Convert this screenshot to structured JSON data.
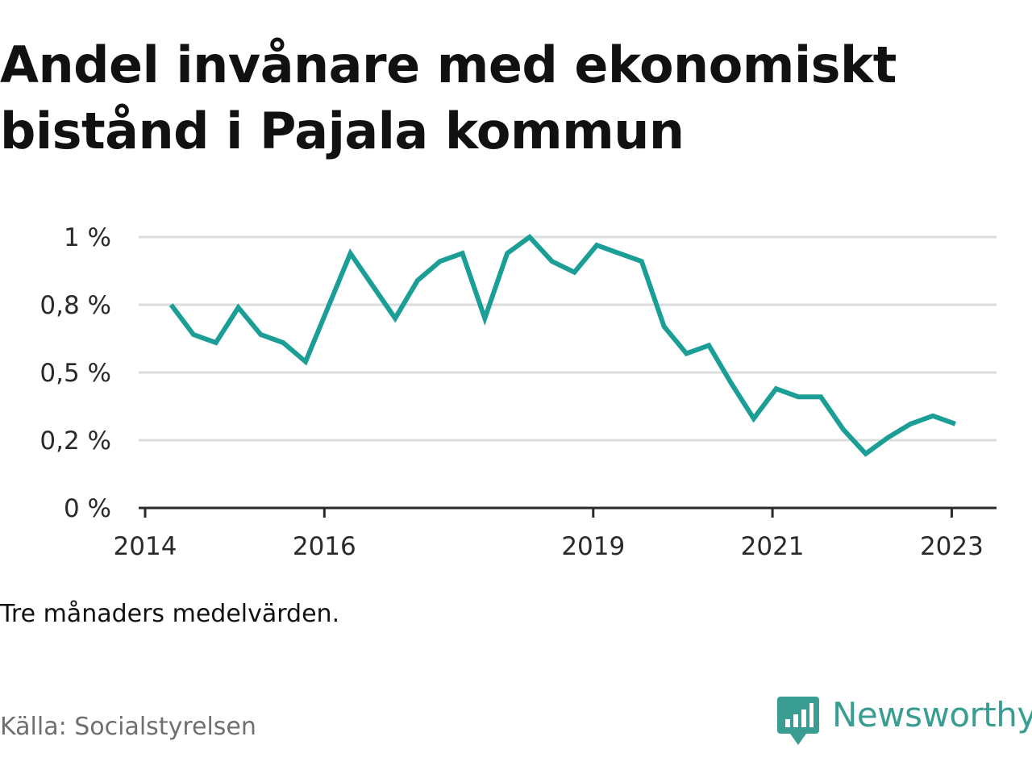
{
  "title": "Andel invånare med ekonomiskt bistånd i Pajala kommun",
  "note": "Tre månaders medelvärden.",
  "source": "Källa: Socialstyrelsen",
  "logo": {
    "text": "Newsworthy",
    "icon": "bar-chart-speech-bubble-icon",
    "color": "#3a9d91"
  },
  "chart_data": {
    "type": "line",
    "title": "Andel invånare med ekonomiskt bistånd i Pajala kommun",
    "xlabel": "",
    "ylabel": "",
    "xlim": [
      2014.0,
      2023.5
    ],
    "ylim": [
      0,
      1.0
    ],
    "x_ticks": [
      {
        "value": 2014,
        "label": "2014"
      },
      {
        "value": 2016,
        "label": "2016"
      },
      {
        "value": 2019,
        "label": "2019"
      },
      {
        "value": 2021,
        "label": "2021"
      },
      {
        "value": 2023,
        "label": "2023"
      }
    ],
    "y_ticks": [
      {
        "value": 0,
        "label": "0 %"
      },
      {
        "value": 0.25,
        "label": "0,2 %"
      },
      {
        "value": 0.5,
        "label": "0,5 %"
      },
      {
        "value": 0.75,
        "label": "0,8 %"
      },
      {
        "value": 1.0,
        "label": "1 %"
      }
    ],
    "grid": true,
    "line_color": "#1a9e96",
    "series": [
      {
        "x": [
          2014.29,
          2014.54,
          2014.79,
          2015.04,
          2015.29,
          2015.54,
          2015.79,
          2016.04,
          2016.29,
          2016.54,
          2016.79,
          2017.04,
          2017.29,
          2017.54,
          2017.79,
          2018.04,
          2018.29,
          2018.54,
          2018.79,
          2019.04,
          2019.29,
          2019.54,
          2019.79,
          2020.04,
          2020.29,
          2020.54,
          2020.79,
          2021.04,
          2021.29,
          2021.54,
          2021.79,
          2022.04,
          2022.29,
          2022.54,
          2022.79,
          2023.04
        ],
        "values": [
          0.75,
          0.64,
          0.61,
          0.74,
          0.64,
          0.61,
          0.54,
          0.74,
          0.94,
          0.82,
          0.7,
          0.84,
          0.91,
          0.94,
          0.7,
          0.94,
          1.0,
          0.91,
          0.87,
          0.97,
          0.94,
          0.91,
          0.67,
          0.57,
          0.6,
          0.46,
          0.33,
          0.44,
          0.41,
          0.41,
          0.29,
          0.2,
          0.26,
          0.31,
          0.34,
          0.31
        ]
      }
    ]
  }
}
